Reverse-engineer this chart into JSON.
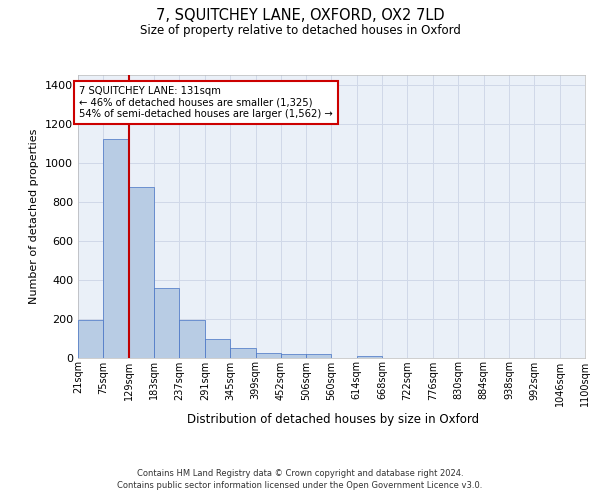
{
  "title": "7, SQUITCHEY LANE, OXFORD, OX2 7LD",
  "subtitle": "Size of property relative to detached houses in Oxford",
  "xlabel": "Distribution of detached houses by size in Oxford",
  "ylabel": "Number of detached properties",
  "footer_line1": "Contains HM Land Registry data © Crown copyright and database right 2024.",
  "footer_line2": "Contains public sector information licensed under the Open Government Licence v3.0.",
  "annotation_line1": "7 SQUITCHEY LANE: 131sqm",
  "annotation_line2": "← 46% of detached houses are smaller (1,325)",
  "annotation_line3": "54% of semi-detached houses are larger (1,562) →",
  "bar_color": "#b8cce4",
  "bar_edge_color": "#4472c4",
  "grid_color": "#d0d8e8",
  "background_color": "#eaf0f8",
  "red_line_color": "#c00000",
  "categories": [
    "21sqm",
    "75sqm",
    "129sqm",
    "183sqm",
    "237sqm",
    "291sqm",
    "345sqm",
    "399sqm",
    "452sqm",
    "506sqm",
    "560sqm",
    "614sqm",
    "668sqm",
    "722sqm",
    "776sqm",
    "830sqm",
    "884sqm",
    "938sqm",
    "992sqm",
    "1046sqm",
    "1100sqm"
  ],
  "bin_edges": [
    21,
    75,
    129,
    183,
    237,
    291,
    345,
    399,
    452,
    506,
    560,
    614,
    668,
    722,
    776,
    830,
    884,
    938,
    992,
    1046,
    1100
  ],
  "bar_heights": [
    190,
    1120,
    875,
    355,
    190,
    95,
    50,
    22,
    20,
    18,
    0,
    10,
    0,
    0,
    0,
    0,
    0,
    0,
    0,
    0
  ],
  "ylim": [
    0,
    1450
  ],
  "yticks": [
    0,
    200,
    400,
    600,
    800,
    1000,
    1200,
    1400
  ],
  "red_line_x": 129
}
